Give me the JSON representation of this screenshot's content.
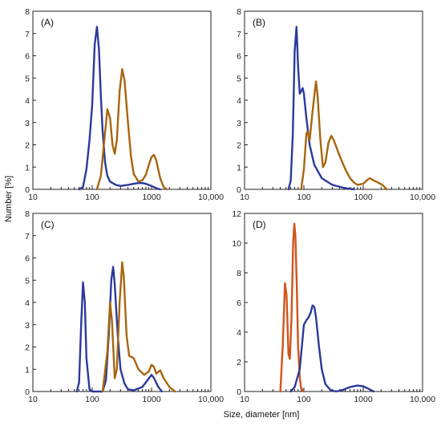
{
  "figure": {
    "xlabel": "Size, diameter [nm]",
    "ylabel": "Number [%]"
  },
  "chart_data": [
    {
      "type": "line",
      "panel": "(A)",
      "xscale": "log",
      "xlim": [
        10,
        10000
      ],
      "ylim": [
        0,
        8
      ],
      "x_tick_labels": [
        "10",
        "100",
        "1000",
        "10,000"
      ],
      "y_tick_labels": [
        "0",
        "1",
        "2",
        "3",
        "4",
        "5",
        "6",
        "7",
        "8"
      ],
      "series": [
        {
          "color": "#2b3a9a",
          "points": [
            [
              60,
              0
            ],
            [
              70,
              0.1
            ],
            [
              80,
              0.9
            ],
            [
              90,
              2.2
            ],
            [
              100,
              3.8
            ],
            [
              110,
              6.5
            ],
            [
              120,
              7.3
            ],
            [
              130,
              6.3
            ],
            [
              140,
              4.2
            ],
            [
              150,
              2.6
            ],
            [
              165,
              1.2
            ],
            [
              180,
              0.6
            ],
            [
              200,
              0.35
            ],
            [
              250,
              0.2
            ],
            [
              300,
              0.15
            ],
            [
              400,
              0.2
            ],
            [
              500,
              0.25
            ],
            [
              600,
              0.28
            ],
            [
              700,
              0.28
            ],
            [
              800,
              0.25
            ],
            [
              1000,
              0.15
            ],
            [
              1200,
              0.05
            ],
            [
              1400,
              0
            ]
          ]
        },
        {
          "color": "#a8650e",
          "points": [
            [
              120,
              0
            ],
            [
              140,
              0.6
            ],
            [
              160,
              2.2
            ],
            [
              180,
              3.6
            ],
            [
              200,
              3.2
            ],
            [
              220,
              2.0
            ],
            [
              240,
              1.6
            ],
            [
              260,
              2.2
            ],
            [
              290,
              4.4
            ],
            [
              320,
              5.4
            ],
            [
              350,
              4.9
            ],
            [
              400,
              3.0
            ],
            [
              450,
              1.5
            ],
            [
              500,
              0.7
            ],
            [
              600,
              0.35
            ],
            [
              700,
              0.4
            ],
            [
              800,
              0.65
            ],
            [
              900,
              1.1
            ],
            [
              1000,
              1.45
            ],
            [
              1100,
              1.55
            ],
            [
              1200,
              1.3
            ],
            [
              1400,
              0.5
            ],
            [
              1600,
              0.1
            ],
            [
              1800,
              0
            ]
          ]
        }
      ]
    },
    {
      "type": "line",
      "panel": "(B)",
      "xscale": "log",
      "xlim": [
        10,
        10000
      ],
      "ylim": [
        0,
        8
      ],
      "x_tick_labels": [
        "10",
        "100",
        "1000",
        "10,000"
      ],
      "y_tick_labels": [
        "0",
        "1",
        "2",
        "3",
        "4",
        "5",
        "6",
        "7",
        "8"
      ],
      "series": [
        {
          "color": "#2b3a9a",
          "points": [
            [
              55,
              0
            ],
            [
              60,
              0.4
            ],
            [
              65,
              2.5
            ],
            [
              70,
              6.2
            ],
            [
              75,
              7.3
            ],
            [
              80,
              5.5
            ],
            [
              85,
              4.3
            ],
            [
              90,
              4.4
            ],
            [
              95,
              4.55
            ],
            [
              100,
              4.3
            ],
            [
              110,
              3.2
            ],
            [
              125,
              2.0
            ],
            [
              150,
              1.1
            ],
            [
              200,
              0.5
            ],
            [
              300,
              0.2
            ],
            [
              500,
              0.05
            ],
            [
              700,
              0
            ]
          ]
        },
        {
          "color": "#a8650e",
          "points": [
            [
              90,
              0
            ],
            [
              100,
              0.9
            ],
            [
              110,
              2.5
            ],
            [
              115,
              2.6
            ],
            [
              125,
              2.2
            ],
            [
              140,
              3.5
            ],
            [
              160,
              4.85
            ],
            [
              170,
              4.2
            ],
            [
              190,
              2.2
            ],
            [
              210,
              1.0
            ],
            [
              230,
              1.2
            ],
            [
              260,
              2.1
            ],
            [
              290,
              2.4
            ],
            [
              320,
              2.2
            ],
            [
              400,
              1.5
            ],
            [
              500,
              0.9
            ],
            [
              600,
              0.5
            ],
            [
              700,
              0.3
            ],
            [
              800,
              0.2
            ],
            [
              1000,
              0.25
            ],
            [
              1200,
              0.45
            ],
            [
              1300,
              0.5
            ],
            [
              1500,
              0.4
            ],
            [
              1800,
              0.3
            ],
            [
              2100,
              0.2
            ],
            [
              2500,
              0
            ]
          ]
        }
      ]
    },
    {
      "type": "line",
      "panel": "(C)",
      "xscale": "log",
      "xlim": [
        10,
        10000
      ],
      "ylim": [
        0,
        8
      ],
      "x_tick_labels": [
        "10",
        "100",
        "1000",
        "10,000"
      ],
      "y_tick_labels": [
        "0",
        "1",
        "2",
        "3",
        "4",
        "5",
        "6",
        "7",
        "8"
      ],
      "series": [
        {
          "color": "#2b3a9a",
          "points": [
            [
              55,
              0
            ],
            [
              60,
              0.4
            ],
            [
              65,
              3.0
            ],
            [
              70,
              4.9
            ],
            [
              75,
              4.0
            ],
            [
              80,
              1.5
            ],
            [
              90,
              0.1
            ],
            [
              100,
              0
            ],
            [
              150,
              0
            ],
            [
              170,
              0.5
            ],
            [
              190,
              2.5
            ],
            [
              210,
              5.0
            ],
            [
              225,
              5.6
            ],
            [
              240,
              4.8
            ],
            [
              270,
              2.5
            ],
            [
              300,
              1.0
            ],
            [
              350,
              0.35
            ],
            [
              400,
              0.1
            ],
            [
              500,
              0.05
            ],
            [
              700,
              0.2
            ],
            [
              850,
              0.5
            ],
            [
              1000,
              0.75
            ],
            [
              1100,
              0.6
            ],
            [
              1300,
              0.2
            ],
            [
              1500,
              0
            ]
          ]
        },
        {
          "color": "#a8650e",
          "points": [
            [
              150,
              0
            ],
            [
              180,
              1.8
            ],
            [
              200,
              4.0
            ],
            [
              215,
              3.2
            ],
            [
              240,
              0.6
            ],
            [
              260,
              1.0
            ],
            [
              290,
              4.0
            ],
            [
              320,
              5.8
            ],
            [
              340,
              5.2
            ],
            [
              380,
              2.5
            ],
            [
              420,
              1.6
            ],
            [
              500,
              1.5
            ],
            [
              600,
              1.0
            ],
            [
              750,
              0.75
            ],
            [
              900,
              0.9
            ],
            [
              1000,
              1.2
            ],
            [
              1100,
              1.1
            ],
            [
              1200,
              0.8
            ],
            [
              1400,
              0.95
            ],
            [
              1600,
              0.6
            ],
            [
              2000,
              0.2
            ],
            [
              2500,
              0
            ]
          ]
        }
      ]
    },
    {
      "type": "line",
      "panel": "(D)",
      "xscale": "log",
      "xlim": [
        10,
        10000
      ],
      "ylim": [
        0,
        12
      ],
      "x_tick_labels": [
        "10",
        "100",
        "1000",
        "10,000"
      ],
      "y_tick_labels": [
        "0",
        "2",
        "4",
        "6",
        "8",
        "10",
        "12"
      ],
      "series": [
        {
          "color": "#d2531a",
          "points": [
            [
              40,
              0
            ],
            [
              44,
              3.0
            ],
            [
              48,
              7.3
            ],
            [
              51,
              6.5
            ],
            [
              55,
              2.5
            ],
            [
              58,
              2.2
            ],
            [
              62,
              5.0
            ],
            [
              66,
              10.0
            ],
            [
              69,
              11.3
            ],
            [
              72,
              10.5
            ],
            [
              76,
              7.0
            ],
            [
              80,
              3.0
            ],
            [
              85,
              1.0
            ],
            [
              90,
              0.2
            ],
            [
              100,
              0
            ]
          ]
        },
        {
          "color": "#2b3a9a",
          "points": [
            [
              60,
              0
            ],
            [
              70,
              0.3
            ],
            [
              85,
              1.5
            ],
            [
              100,
              4.5
            ],
            [
              110,
              4.8
            ],
            [
              120,
              5.0
            ],
            [
              130,
              5.3
            ],
            [
              140,
              5.8
            ],
            [
              150,
              5.7
            ],
            [
              160,
              5.0
            ],
            [
              180,
              3.0
            ],
            [
              200,
              1.5
            ],
            [
              230,
              0.5
            ],
            [
              280,
              0.1
            ],
            [
              350,
              0
            ],
            [
              450,
              0.1
            ],
            [
              600,
              0.3
            ],
            [
              800,
              0.4
            ],
            [
              1000,
              0.35
            ],
            [
              1200,
              0.2
            ],
            [
              1500,
              0
            ]
          ]
        }
      ]
    }
  ]
}
